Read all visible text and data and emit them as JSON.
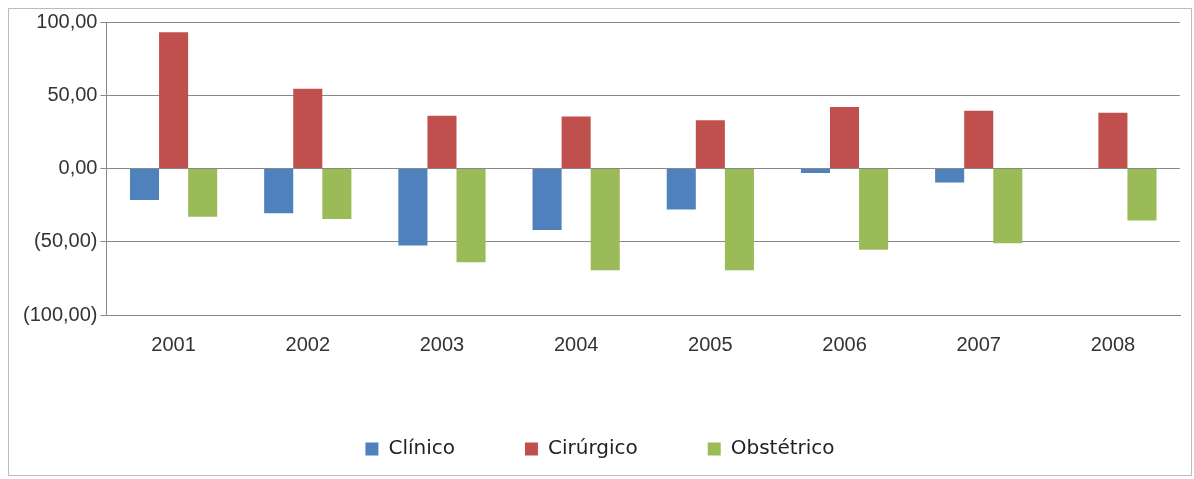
{
  "chart_data": {
    "type": "bar",
    "categories": [
      "2001",
      "2002",
      "2003",
      "2004",
      "2005",
      "2006",
      "2007",
      "2008"
    ],
    "series": [
      {
        "name": "Clínico",
        "color": "#4f81bd",
        "values": [
          -21.5,
          -30.5,
          -52.5,
          -42,
          -28,
          -3,
          -9.5,
          0
        ]
      },
      {
        "name": "Cirúrgico",
        "color": "#c0504d",
        "values": [
          93,
          54.5,
          36,
          35.5,
          33,
          42,
          39.5,
          38
        ]
      },
      {
        "name": "Obstétrico",
        "color": "#9bbb59",
        "values": [
          -33,
          -34.5,
          -64,
          -69.5,
          -69.5,
          -55.5,
          -51,
          -35.5
        ]
      }
    ],
    "ylim": [
      -100,
      100
    ],
    "yticks": [
      {
        "value": -100,
        "label": "(100,00)"
      },
      {
        "value": -50,
        "label": "(50,00)"
      },
      {
        "value": 0,
        "label": "0,00"
      },
      {
        "value": 50,
        "label": "50,00"
      },
      {
        "value": 100,
        "label": "100,00"
      }
    ],
    "grid": "y",
    "legend": "bottom"
  }
}
